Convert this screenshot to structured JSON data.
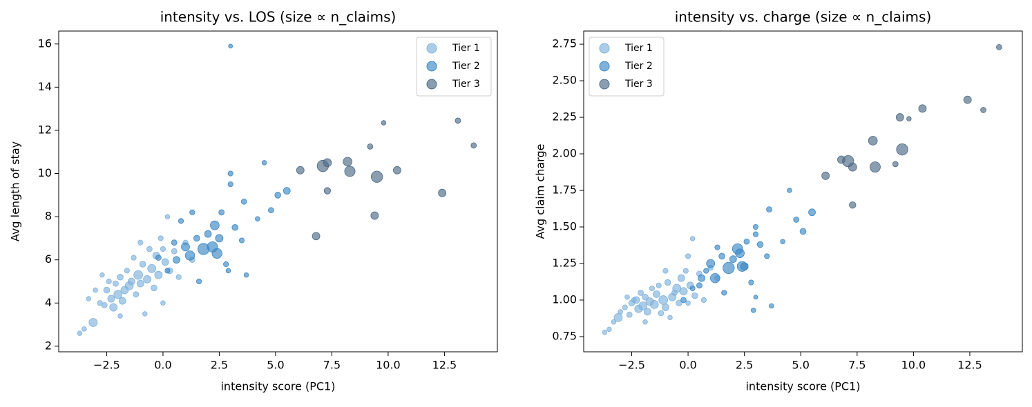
{
  "chart_data": [
    {
      "type": "scatter",
      "title": "intensity vs. LOS (size ∝ n_claims)",
      "xlabel": "intensity score (PC1)",
      "ylabel": "Avg length of stay",
      "xlim": [
        -4.63,
        14.85
      ],
      "ylim": [
        1.74,
        16.6
      ],
      "xticks": [
        {
          "value": -2.5,
          "label": "−2.5"
        },
        {
          "value": 0,
          "label": "0.0"
        },
        {
          "value": 2.5,
          "label": "2.5"
        },
        {
          "value": 5,
          "label": "5.0"
        },
        {
          "value": 7.5,
          "label": "7.5"
        },
        {
          "value": 10,
          "label": "10.0"
        },
        {
          "value": 12.5,
          "label": "12.5"
        }
      ],
      "yticks": [
        2,
        4,
        6,
        8,
        10,
        12,
        14,
        16
      ],
      "legend_loc": "upper right",
      "series": [
        {
          "name": "Tier 1",
          "color": "#7fb2dc",
          "x": [
            -3.7,
            -3.5,
            -3.1,
            -3.0,
            -2.8,
            -2.6,
            -2.5,
            -2.3,
            -2.2,
            -2.1,
            -2.0,
            -1.9,
            -1.8,
            -1.7,
            -1.6,
            -1.5,
            -1.4,
            -1.3,
            -1.2,
            -1.1,
            -1.0,
            -0.9,
            -0.8,
            -0.7,
            -0.6,
            -0.5,
            -0.4,
            -0.3,
            -0.2,
            -0.1,
            0.0,
            0.1,
            0.2,
            0.3,
            0.5,
            0.7,
            1.0,
            1.3,
            -2.7,
            -1.9,
            -1.0,
            0.0,
            -3.3,
            -2.4
          ],
          "values": [
            2.6,
            2.8,
            3.1,
            4.6,
            4.0,
            3.9,
            4.6,
            4.2,
            3.8,
            4.9,
            4.4,
            5.2,
            4.1,
            4.6,
            5.5,
            4.8,
            5.0,
            6.1,
            4.4,
            5.3,
            4.9,
            5.8,
            3.5,
            5.1,
            6.5,
            5.6,
            4.7,
            6.2,
            5.3,
            7.0,
            4.0,
            5.9,
            8.0,
            5.5,
            6.4,
            5.2,
            6.8,
            6.0,
            5.3,
            3.4,
            6.8,
            6.5,
            4.2,
            5.0
          ],
          "sizes": [
            8,
            8,
            30,
            8,
            10,
            12,
            15,
            20,
            25,
            12,
            30,
            15,
            20,
            25,
            10,
            30,
            20,
            10,
            12,
            35,
            20,
            15,
            8,
            25,
            12,
            30,
            15,
            20,
            25,
            10,
            8,
            20,
            8,
            15,
            12,
            10,
            10,
            12,
            8,
            8,
            10,
            10,
            8,
            10
          ]
        },
        {
          "name": "Tier 2",
          "color": "#3a87c4",
          "x": [
            0.5,
            1.0,
            1.2,
            1.5,
            1.8,
            2.0,
            2.2,
            2.3,
            2.4,
            2.6,
            2.8,
            3.0,
            3.2,
            3.5,
            3.6,
            3.7,
            4.5,
            4.8,
            5.1,
            5.5,
            0.2,
            -0.2,
            0.8,
            1.6,
            2.5,
            1.3,
            0.6,
            4.2,
            3.0,
            2.9,
            3.0
          ],
          "values": [
            6.8,
            6.6,
            6.2,
            7.0,
            6.5,
            7.2,
            6.6,
            7.6,
            6.3,
            8.2,
            5.8,
            10.0,
            7.5,
            6.9,
            8.7,
            5.3,
            10.5,
            8.3,
            9.0,
            9.2,
            5.5,
            6.1,
            7.8,
            5.0,
            7.0,
            8.2,
            6.0,
            7.9,
            9.5,
            5.5,
            15.9
          ],
          "sizes": [
            12,
            30,
            40,
            15,
            60,
            20,
            50,
            35,
            45,
            12,
            10,
            10,
            15,
            10,
            12,
            8,
            8,
            12,
            15,
            20,
            10,
            12,
            10,
            10,
            25,
            10,
            20,
            8,
            10,
            8,
            6
          ]
        },
        {
          "name": "Tier 3",
          "color": "#4d6a85",
          "x": [
            13.8,
            13.1,
            12.4,
            10.4,
            9.8,
            9.5,
            9.4,
            9.2,
            8.3,
            8.2,
            7.3,
            7.3,
            7.1,
            6.8,
            6.1
          ],
          "values": [
            11.3,
            12.45,
            9.1,
            10.15,
            12.35,
            9.85,
            8.05,
            11.25,
            10.1,
            10.55,
            9.2,
            10.5,
            10.35,
            7.1,
            10.15
          ],
          "sizes": [
            12,
            12,
            25,
            25,
            8,
            60,
            25,
            12,
            50,
            35,
            18,
            30,
            60,
            25,
            25
          ]
        }
      ]
    },
    {
      "type": "scatter",
      "title": "intensity vs. charge (size ∝ n_claims)",
      "xlabel": "intensity score (PC1)",
      "ylabel": "Avg claim charge",
      "xlim": [
        -4.63,
        14.83
      ],
      "ylim": [
        0.646,
        2.84
      ],
      "xticks": [
        {
          "value": -2.5,
          "label": "−2.5"
        },
        {
          "value": 0,
          "label": "0.0"
        },
        {
          "value": 2.5,
          "label": "2.5"
        },
        {
          "value": 5,
          "label": "5.0"
        },
        {
          "value": 7.5,
          "label": "7.5"
        },
        {
          "value": 10,
          "label": "10.0"
        },
        {
          "value": 12.5,
          "label": "12.5"
        }
      ],
      "yticks": [
        {
          "value": 0.75,
          "label": "0.75"
        },
        {
          "value": 1,
          "label": "1.00"
        },
        {
          "value": 1.25,
          "label": "1.25"
        },
        {
          "value": 1.5,
          "label": "1.50"
        },
        {
          "value": 1.75,
          "label": "1.75"
        },
        {
          "value": 2,
          "label": "2.00"
        },
        {
          "value": 2.25,
          "label": "2.25"
        },
        {
          "value": 2.5,
          "label": "2.50"
        },
        {
          "value": 2.75,
          "label": "2.75"
        }
      ],
      "legend_loc": "upper left",
      "series": [
        {
          "name": "Tier 1",
          "color": "#7fb2dc",
          "x": [
            -3.7,
            -3.5,
            -3.1,
            -3.0,
            -2.8,
            -2.6,
            -2.5,
            -2.3,
            -2.2,
            -2.1,
            -2.0,
            -1.9,
            -1.8,
            -1.7,
            -1.6,
            -1.5,
            -1.4,
            -1.3,
            -1.2,
            -1.1,
            -1.0,
            -0.9,
            -0.8,
            -0.7,
            -0.6,
            -0.5,
            -0.4,
            -0.3,
            -0.2,
            -0.1,
            0.0,
            0.1,
            0.2,
            0.3,
            0.5,
            0.7,
            1.0,
            1.3,
            -2.7,
            -1.9,
            -1.0,
            0.0,
            -3.3,
            -2.4
          ],
          "values": [
            0.78,
            0.8,
            0.88,
            0.92,
            0.95,
            0.9,
            0.98,
            1.0,
            0.94,
            1.05,
            0.96,
            1.02,
            0.92,
            0.99,
            1.08,
            0.97,
            1.04,
            1.1,
            0.91,
            1.0,
            0.95,
            1.12,
            0.88,
            1.02,
            1.05,
            1.08,
            0.98,
            1.15,
            1.06,
            1.2,
            0.98,
            1.1,
            1.42,
            1.03,
            1.18,
            1.0,
            1.22,
            1.15,
            1.02,
            0.85,
            1.2,
            1.3,
            0.85,
            1.0
          ],
          "sizes": [
            8,
            8,
            30,
            8,
            10,
            12,
            15,
            20,
            25,
            12,
            30,
            15,
            20,
            25,
            10,
            30,
            20,
            10,
            12,
            35,
            20,
            15,
            8,
            25,
            12,
            30,
            15,
            20,
            25,
            10,
            8,
            20,
            8,
            15,
            12,
            10,
            10,
            12,
            8,
            8,
            10,
            10,
            8,
            10
          ]
        },
        {
          "name": "Tier 2",
          "color": "#3a87c4",
          "x": [
            0.5,
            1.0,
            1.2,
            1.5,
            1.8,
            2.0,
            2.2,
            2.3,
            2.4,
            2.6,
            2.8,
            3.0,
            3.2,
            3.5,
            3.6,
            3.7,
            4.5,
            4.8,
            5.1,
            5.5,
            0.2,
            -0.2,
            0.8,
            1.6,
            2.5,
            1.3,
            0.6,
            4.2,
            3.0,
            2.9,
            3.0
          ],
          "values": [
            1.1,
            1.25,
            1.15,
            1.3,
            1.22,
            1.28,
            1.35,
            1.32,
            1.23,
            1.4,
            1.12,
            1.5,
            1.38,
            1.3,
            1.62,
            0.96,
            1.75,
            1.55,
            1.47,
            1.6,
            1.08,
            1.0,
            1.2,
            1.05,
            1.23,
            1.36,
            1.15,
            1.4,
            1.45,
            0.93,
            1.02
          ],
          "sizes": [
            12,
            30,
            40,
            15,
            60,
            20,
            50,
            35,
            45,
            12,
            10,
            10,
            15,
            10,
            12,
            8,
            8,
            12,
            15,
            20,
            10,
            12,
            10,
            10,
            25,
            10,
            20,
            8,
            10,
            8,
            6
          ]
        },
        {
          "name": "Tier 3",
          "color": "#4d6a85",
          "x": [
            13.8,
            13.1,
            12.4,
            10.4,
            9.8,
            9.5,
            9.4,
            9.2,
            8.3,
            8.2,
            7.3,
            7.3,
            7.1,
            6.8,
            6.1
          ],
          "values": [
            2.73,
            2.3,
            2.37,
            2.31,
            2.24,
            2.03,
            2.25,
            1.93,
            1.91,
            2.09,
            1.65,
            1.91,
            1.95,
            1.96,
            1.85
          ],
          "sizes": [
            12,
            12,
            25,
            25,
            8,
            60,
            25,
            12,
            50,
            35,
            18,
            30,
            60,
            25,
            25
          ]
        }
      ]
    }
  ]
}
